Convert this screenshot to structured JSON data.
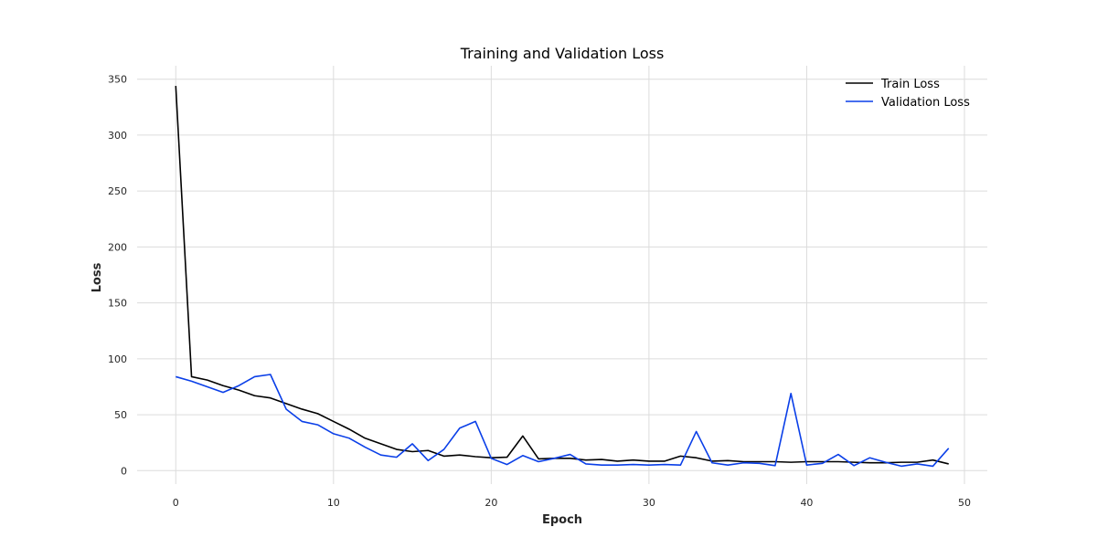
{
  "chart_data": {
    "type": "line",
    "title": "Training and Validation Loss",
    "xlabel": "Epoch",
    "ylabel": "Loss",
    "xlim": [
      -2.45,
      51.45
    ],
    "ylim": [
      -12,
      362
    ],
    "xticks": [
      0,
      10,
      20,
      30,
      40,
      50
    ],
    "yticks": [
      0,
      50,
      100,
      150,
      200,
      250,
      300,
      350
    ],
    "grid": true,
    "legend_position": "top-right",
    "x": [
      0,
      1,
      2,
      3,
      4,
      5,
      6,
      7,
      8,
      9,
      10,
      11,
      12,
      13,
      14,
      15,
      16,
      17,
      18,
      19,
      20,
      21,
      22,
      23,
      24,
      25,
      26,
      27,
      28,
      29,
      30,
      31,
      32,
      33,
      34,
      35,
      36,
      37,
      38,
      39,
      40,
      41,
      42,
      43,
      44,
      45,
      46,
      47,
      48,
      49
    ],
    "series": [
      {
        "name": "Train Loss",
        "color": "#000000",
        "values": [
          344,
          84,
          81,
          76,
          72,
          67,
          65,
          60,
          55,
          51,
          44,
          37,
          29,
          24,
          19,
          17,
          18,
          13,
          14,
          12.5,
          11.5,
          12,
          31,
          10.5,
          11,
          11,
          9.5,
          10,
          8.5,
          9.5,
          8.5,
          8.5,
          13,
          11.5,
          8.5,
          9,
          8,
          8,
          8,
          7.5,
          8,
          8,
          8,
          7.5,
          7,
          7,
          7.5,
          7.5,
          9.5,
          6
        ]
      },
      {
        "name": "Validation Loss",
        "color": "#0a3fe8",
        "values": [
          84,
          80,
          75,
          70,
          76,
          84,
          86,
          55,
          44,
          41,
          33,
          29,
          21,
          14,
          12,
          24,
          9,
          19,
          38,
          44,
          11,
          5.5,
          13.5,
          8,
          11,
          14.5,
          6,
          5,
          5,
          5.5,
          5,
          5.5,
          5,
          35,
          7,
          5,
          7,
          6.5,
          4.5,
          69,
          5,
          6.5,
          14.5,
          4.5,
          11.5,
          7.5,
          4,
          6,
          4,
          20
        ]
      }
    ]
  }
}
